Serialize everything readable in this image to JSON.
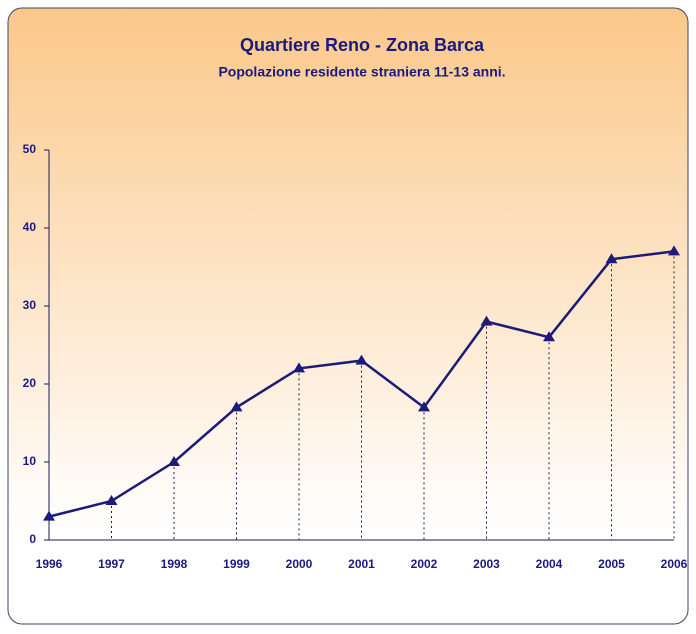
{
  "chart_data": {
    "type": "line",
    "title": "Quartiere Reno - Zona Barca",
    "subtitle": "Popolazione residente straniera 11-13 anni.",
    "categories": [
      "1996",
      "1997",
      "1998",
      "1999",
      "2000",
      "2001",
      "2002",
      "2003",
      "2004",
      "2005",
      "2006"
    ],
    "values": [
      3,
      5,
      10,
      17,
      22,
      23,
      17,
      28,
      26,
      36,
      37
    ],
    "color": "#1c1c78",
    "ylim": [
      0,
      50
    ],
    "yticks": [
      0,
      10,
      20,
      30,
      40,
      50
    ],
    "grid": false
  }
}
